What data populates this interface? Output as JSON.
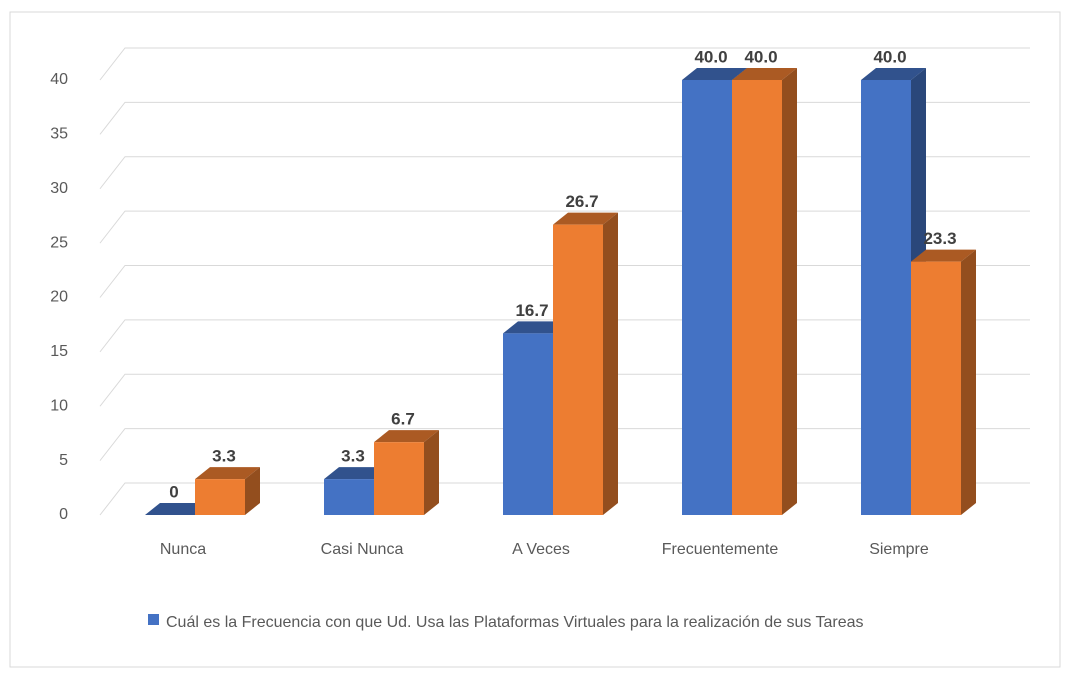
{
  "chart_data": {
    "type": "bar3d",
    "categories": [
      "Nunca",
      "Casi Nunca",
      "A Veces",
      "Frecuentemente",
      "Siempre"
    ],
    "series": [
      {
        "name": "Cuál es la Frecuencia con que Ud. Usa las Plataformas Virtuales para la realización de sus Tareas",
        "color": "#4472c4",
        "values": [
          0,
          3.3,
          16.7,
          40,
          40
        ],
        "value_labels": [
          "0",
          "3.3",
          "16.7",
          "40.0",
          "40.0"
        ]
      },
      {
        "color": "#ed7d31",
        "values": [
          3.3,
          6.7,
          26.7,
          40,
          23.3
        ],
        "value_labels": [
          "3.3",
          "6.7",
          "26.7",
          "40.0",
          "23.3"
        ]
      }
    ],
    "ylim": [
      0,
      40
    ],
    "yticks": [
      0,
      5,
      10,
      15,
      20,
      25,
      30,
      35,
      40
    ],
    "grid": true,
    "legend": "bottom"
  }
}
